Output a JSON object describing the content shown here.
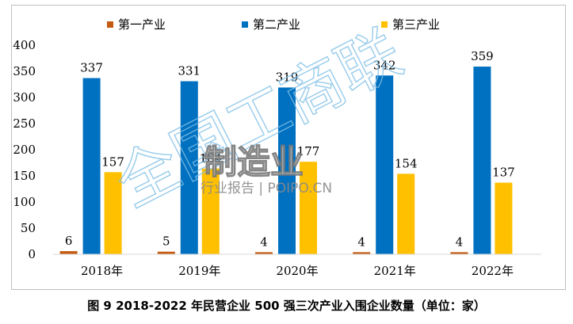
{
  "chart_data": {
    "type": "bar",
    "categories": [
      "2018年",
      "2019年",
      "2020年",
      "2021年",
      "2022年"
    ],
    "series": [
      {
        "name": "第一产业",
        "values": [
          6,
          5,
          4,
          4,
          4
        ],
        "color": "#c55a11"
      },
      {
        "name": "第二产业",
        "values": [
          337,
          331,
          319,
          342,
          359
        ],
        "color": "#0070c0"
      },
      {
        "name": "第三产业",
        "values": [
          157,
          164,
          177,
          154,
          137
        ],
        "color": "#ffc000"
      }
    ],
    "yticks": [
      "0",
      "50",
      "100",
      "150",
      "200",
      "250",
      "300",
      "350",
      "400"
    ],
    "ylim": [
      0,
      400
    ],
    "grid": false,
    "legend_position": "top"
  },
  "watermark": {
    "text1": "全国工商联",
    "text2": "制造业",
    "text3": "行业报告 | POIPO.CN"
  },
  "caption": "图 9    2018-2022 年民营企业 500 强三次产业入围企业数量（单位：家）"
}
